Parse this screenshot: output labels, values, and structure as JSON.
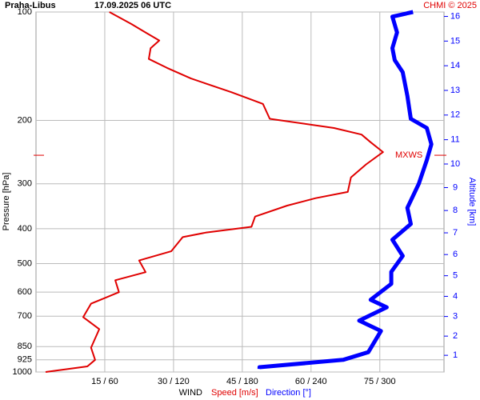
{
  "chart_data": {
    "type": "profile",
    "station": "Praha-Libus",
    "time": "17.09.2025 06 UTC",
    "credit": "CHMI © 2025",
    "ylabel": "Pressure [hPa]",
    "y2label": "Altitude [km]",
    "xlabel": "WIND",
    "ylim": [
      1000,
      100
    ],
    "log_y": true,
    "yticks": [
      100,
      200,
      300,
      400,
      500,
      600,
      700,
      850,
      925,
      1000
    ],
    "y2ticks": [
      1,
      2,
      3,
      4,
      5,
      6,
      7,
      8,
      9,
      10,
      11,
      12,
      13,
      14,
      15,
      16
    ],
    "xlim": [
      0,
      89
    ],
    "xticks": [
      {
        "value": 15,
        "label": "15 / 60"
      },
      {
        "value": 30,
        "label": "30 / 120"
      },
      {
        "value": 45,
        "label": "45 / 180"
      },
      {
        "value": 60,
        "label": "60 / 240"
      },
      {
        "value": 75,
        "label": "75 / 300"
      }
    ],
    "grid": true,
    "mxws": {
      "label": "MXWS",
      "pressure": 250
    },
    "series": [
      {
        "name": "Speed [m/s]",
        "color": "#e00000",
        "xlim": [
          0,
          89
        ],
        "pressure": [
          100,
          108,
          114,
          120,
          126,
          135,
          143,
          153,
          167,
          180,
          198,
          210,
          219,
          230,
          245,
          265,
          288,
          316,
          329,
          345,
          370,
          395,
          410,
          422,
          462,
          490,
          528,
          556,
          600,
          646,
          704,
          760,
          856,
          925,
          965,
          1000
        ],
        "values": [
          16,
          20.8,
          23.9,
          26.9,
          25,
          24.6,
          28.6,
          33.8,
          42.6,
          49.5,
          51,
          65,
          71,
          73,
          75.7,
          72,
          68.7,
          68,
          61,
          54.8,
          47.8,
          47,
          37,
          32,
          29.5,
          22.5,
          23.9,
          17.3,
          18.1,
          12,
          10.3,
          13.8,
          12,
          12.9,
          11.2,
          2.1
        ]
      },
      {
        "name": "Direction [°]",
        "color": "#0000ff",
        "xlim": [
          0,
          356
        ],
        "pressure": [
          100,
          103,
          114,
          126,
          136,
          147,
          171,
          198,
          210,
          233,
          258,
          300,
          350,
          388,
          429,
          476,
          527,
          569,
          630,
          661,
          720,
          769,
          881,
          925,
          970,
          980
        ],
        "values": [
          329,
          311,
          315,
          311,
          313,
          320,
          324,
          327,
          341,
          345,
          341,
          334,
          324,
          327,
          311,
          320,
          310,
          310,
          292,
          306,
          282,
          301,
          290,
          268,
          195,
          195
        ]
      }
    ]
  }
}
